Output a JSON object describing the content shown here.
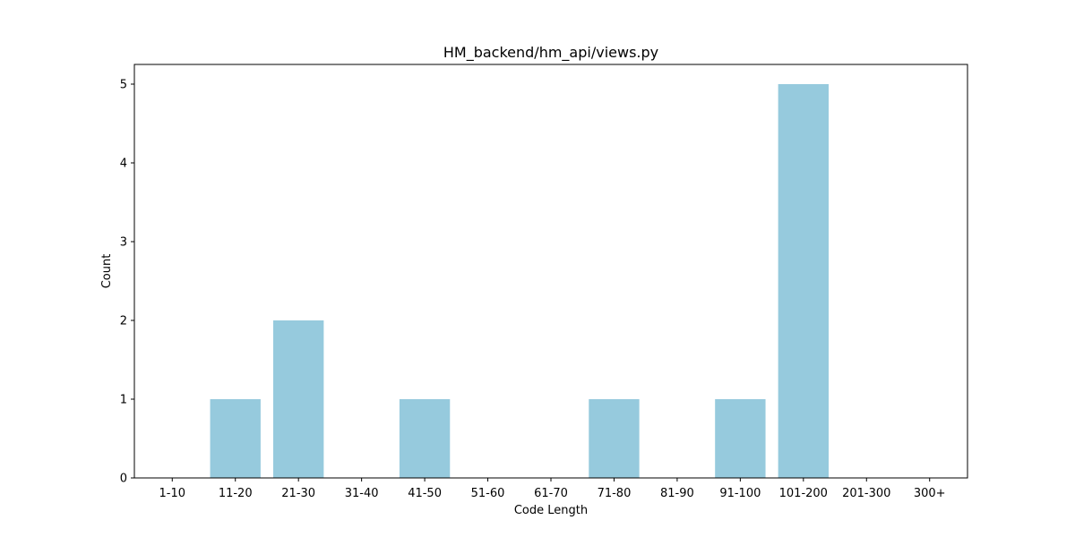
{
  "chart_data": {
    "type": "bar",
    "title": "HM_backend/hm_api/views.py",
    "xlabel": "Code Length",
    "ylabel": "Count",
    "categories": [
      "1-10",
      "11-20",
      "21-30",
      "31-40",
      "41-50",
      "51-60",
      "61-70",
      "71-80",
      "81-90",
      "91-100",
      "101-200",
      "201-300",
      "300+"
    ],
    "values": [
      0,
      1,
      2,
      0,
      1,
      0,
      0,
      1,
      0,
      1,
      5,
      0,
      0
    ],
    "ylim": [
      0,
      5.25
    ],
    "yticks": [
      0,
      1,
      2,
      3,
      4,
      5
    ],
    "bar_color": "#96cadd",
    "grid": false,
    "legend": "none"
  }
}
